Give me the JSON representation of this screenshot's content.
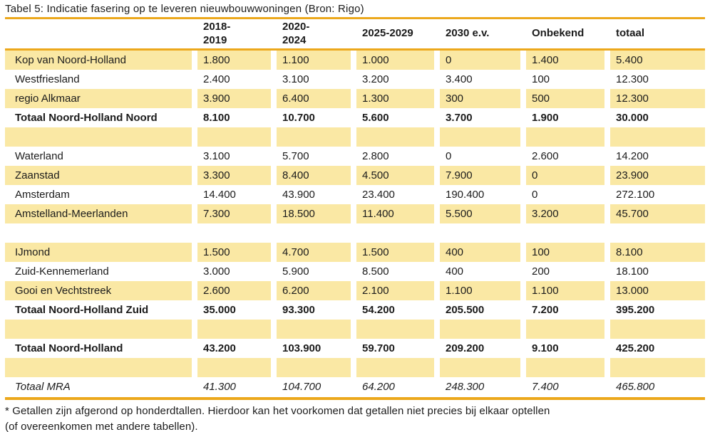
{
  "title": "Tabel 5: Indicatie fasering op te leveren nieuwbouwwoningen (Bron: Rigo)",
  "colors": {
    "row_highlight": "#FAE8A4",
    "rule_gold": "#ECA81C"
  },
  "table": {
    "columns": [
      "",
      "2018-\n2019",
      "2020-\n2024",
      "2025-2029",
      "2030 e.v.",
      "Onbekend",
      "totaal"
    ],
    "rows": [
      {
        "label": "Kop van Noord-Holland",
        "values": [
          "1.800",
          "1.100",
          "1.000",
          "0",
          "1.400",
          "5.400"
        ],
        "bg": "yellow",
        "style": ""
      },
      {
        "label": "Westfriesland",
        "values": [
          "2.400",
          "3.100",
          "3.200",
          "3.400",
          "100",
          "12.300"
        ],
        "bg": "white",
        "style": ""
      },
      {
        "label": "regio Alkmaar",
        "values": [
          "3.900",
          "6.400",
          "1.300",
          "300",
          "500",
          "12.300"
        ],
        "bg": "yellow",
        "style": ""
      },
      {
        "label": "Totaal Noord-Holland Noord",
        "values": [
          "8.100",
          "10.700",
          "5.600",
          "3.700",
          "1.900",
          "30.000"
        ],
        "bg": "white",
        "style": "bold"
      },
      {
        "label": "",
        "values": [
          "",
          "",
          "",
          "",
          "",
          ""
        ],
        "bg": "yellow",
        "style": "spacer"
      },
      {
        "label": "Waterland",
        "values": [
          "3.100",
          "5.700",
          "2.800",
          "0",
          "2.600",
          "14.200"
        ],
        "bg": "white",
        "style": ""
      },
      {
        "label": "Zaanstad",
        "values": [
          "3.300",
          "8.400",
          "4.500",
          "7.900",
          "0",
          "23.900"
        ],
        "bg": "yellow",
        "style": ""
      },
      {
        "label": "Amsterdam",
        "values": [
          "14.400",
          "43.900",
          "23.400",
          "190.400",
          "0",
          "272.100"
        ],
        "bg": "white",
        "style": ""
      },
      {
        "label": "Amstelland-Meerlanden",
        "values": [
          "7.300",
          "18.500",
          "11.400",
          "5.500",
          "3.200",
          "45.700"
        ],
        "bg": "yellow",
        "style": ""
      },
      {
        "label": "",
        "values": [
          "",
          "",
          "",
          "",
          "",
          ""
        ],
        "bg": "white",
        "style": "spacer"
      },
      {
        "label": "IJmond",
        "values": [
          "1.500",
          "4.700",
          "1.500",
          "400",
          "100",
          "8.100"
        ],
        "bg": "yellow",
        "style": ""
      },
      {
        "label": "Zuid-Kennemerland",
        "values": [
          "3.000",
          "5.900",
          "8.500",
          "400",
          "200",
          "18.100"
        ],
        "bg": "white",
        "style": ""
      },
      {
        "label": "Gooi en Vechtstreek",
        "values": [
          "2.600",
          "6.200",
          "2.100",
          "1.100",
          "1.100",
          "13.000"
        ],
        "bg": "yellow",
        "style": ""
      },
      {
        "label": "Totaal Noord-Holland Zuid",
        "values": [
          "35.000",
          "93.300",
          "54.200",
          "205.500",
          "7.200",
          "395.200"
        ],
        "bg": "white",
        "style": "bold"
      },
      {
        "label": "",
        "values": [
          "",
          "",
          "",
          "",
          "",
          ""
        ],
        "bg": "yellow",
        "style": "spacer"
      },
      {
        "label": "Totaal Noord-Holland",
        "values": [
          "43.200",
          "103.900",
          "59.700",
          "209.200",
          "9.100",
          "425.200"
        ],
        "bg": "white",
        "style": "bold"
      },
      {
        "label": "",
        "values": [
          "",
          "",
          "",
          "",
          "",
          ""
        ],
        "bg": "yellow",
        "style": "spacer"
      },
      {
        "label": "Totaal MRA",
        "values": [
          "41.300",
          "104.700",
          "64.200",
          "248.300",
          "7.400",
          "465.800"
        ],
        "bg": "white",
        "style": "italic"
      }
    ]
  },
  "footnote": "* Getallen zijn afgerond op honderdtallen. Hierdoor kan het voorkomen dat getallen niet precies bij elkaar optellen\n(of overeenkomen met andere tabellen)."
}
